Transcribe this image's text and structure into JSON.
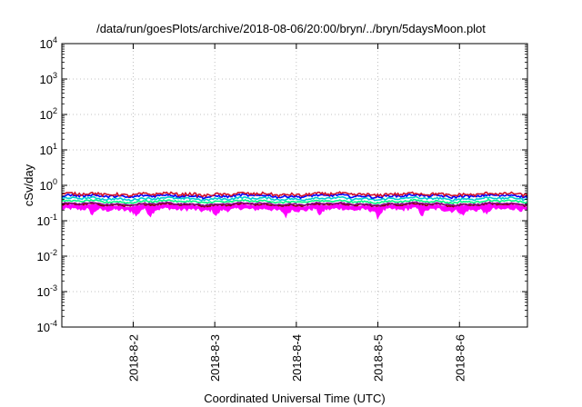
{
  "chart_data": {
    "type": "line",
    "title": "/data/run/goesPlots/archive/2018-08-06/20:00/bryn/../bryn/5daysMoon.plot",
    "xlabel": "Coordinated Universal Time (UTC)",
    "ylabel": "cSv/day",
    "yscale": "log",
    "ylim": [
      0.0001,
      10000
    ],
    "xlim": [
      "2018-08-01T03:00",
      "2018-08-06T20:00"
    ],
    "grid": true,
    "legend": "none",
    "yticks": [
      {
        "base": "10",
        "exp": "-4",
        "value": 0.0001
      },
      {
        "base": "10",
        "exp": "-3",
        "value": 0.001
      },
      {
        "base": "10",
        "exp": "-2",
        "value": 0.01
      },
      {
        "base": "10",
        "exp": "-1",
        "value": 0.1
      },
      {
        "base": "10",
        "exp": "0",
        "value": 1
      },
      {
        "base": "10",
        "exp": "1",
        "value": 10
      },
      {
        "base": "10",
        "exp": "2",
        "value": 100
      },
      {
        "base": "10",
        "exp": "3",
        "value": 1000
      },
      {
        "base": "10",
        "exp": "4",
        "value": 10000
      }
    ],
    "xticks": [
      {
        "label": "2018-8-2",
        "value": "2018-08-02T00:00"
      },
      {
        "label": "2018-8-3",
        "value": "2018-08-03T00:00"
      },
      {
        "label": "2018-8-4",
        "value": "2018-08-04T00:00"
      },
      {
        "label": "2018-8-5",
        "value": "2018-08-05T00:00"
      },
      {
        "label": "2018-8-6",
        "value": "2018-08-06T00:00"
      }
    ],
    "series": [
      {
        "color": "#ff00ff",
        "style": "fill",
        "base": 0.21,
        "noise": 0.12,
        "dip": 0.35,
        "dips": [
          "2018-08-01T12:00",
          "2018-08-02T01:00",
          "2018-08-02T05:00",
          "2018-08-03T00:30",
          "2018-08-03T21:00",
          "2018-08-04T07:00",
          "2018-08-05T00:00",
          "2018-08-05T13:00",
          "2018-08-06T01:00",
          "2018-08-06T08:00"
        ]
      },
      {
        "color": "#ff00ff",
        "style": "line",
        "base": 0.26,
        "noise": 0.06
      },
      {
        "color": "#8b0000",
        "style": "line",
        "base": 0.285,
        "noise": 0.05
      },
      {
        "color": "#8b008b",
        "style": "line",
        "base": 0.3,
        "noise": 0.05
      },
      {
        "color": "#00ff7f",
        "style": "line",
        "base": 0.35,
        "noise": 0.05
      },
      {
        "color": "#00ced1",
        "style": "line",
        "base": 0.42,
        "noise": 0.06
      },
      {
        "color": "#0000ff",
        "style": "line",
        "base": 0.5,
        "noise": 0.07
      },
      {
        "color": "#d0102a",
        "style": "line",
        "base": 0.56,
        "noise": 0.09
      }
    ]
  }
}
